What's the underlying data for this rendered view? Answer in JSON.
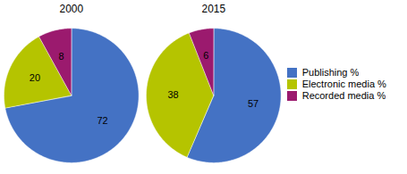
{
  "chart_data": [
    {
      "type": "pie",
      "title": "2000",
      "categories": [
        "Publishing %",
        "Electronic media %",
        "Recorded media %"
      ],
      "values": [
        72,
        20,
        8
      ],
      "colors": [
        "#4472c4",
        "#b5c400",
        "#9b1a6e"
      ],
      "data_labels": true
    },
    {
      "type": "pie",
      "title": "2015",
      "categories": [
        "Publishing %",
        "Electronic media %",
        "Recorded media %"
      ],
      "values": [
        57,
        38,
        6
      ],
      "colors": [
        "#4472c4",
        "#b5c400",
        "#9b1a6e"
      ],
      "data_labels": true,
      "legend": "right"
    }
  ]
}
